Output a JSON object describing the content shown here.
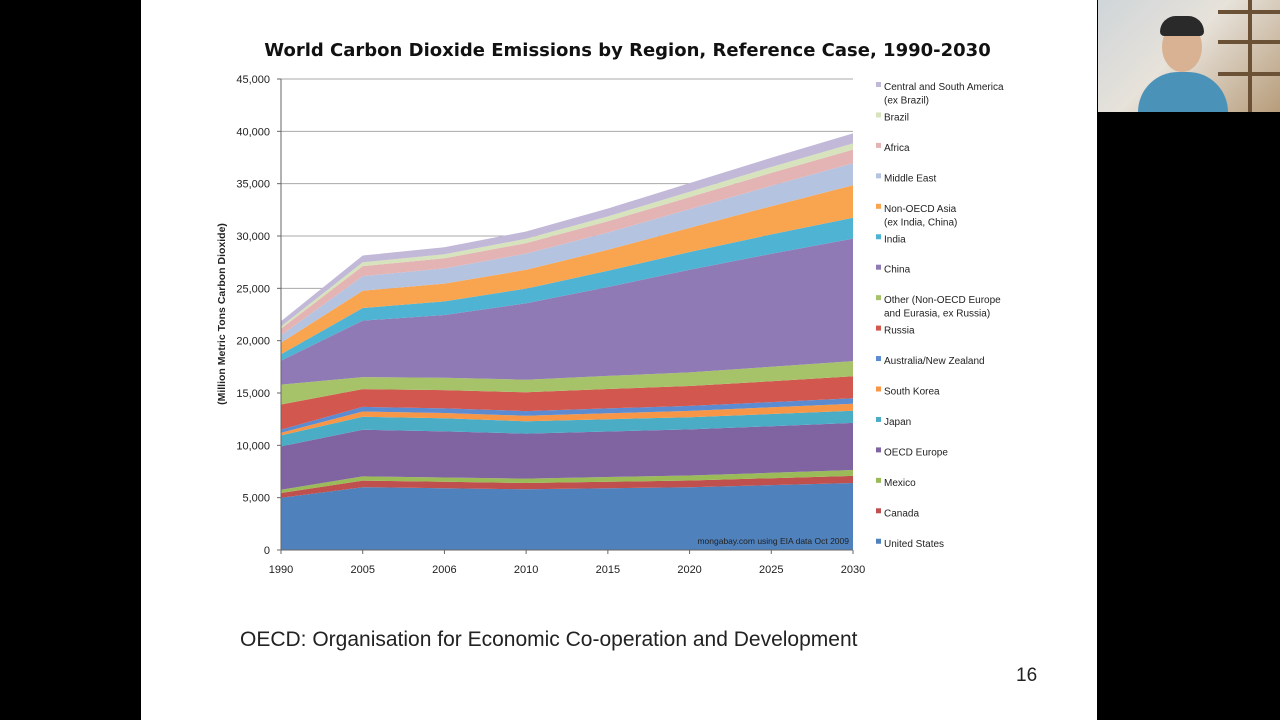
{
  "chart_data": {
    "type": "area",
    "stacked": true,
    "title": "World Carbon Dioxide Emissions by Region, Reference Case, 1990-2030",
    "xlabel": "",
    "ylabel": "(Million Metric Tons Carbon Dioxide)",
    "ylim": [
      0,
      45000
    ],
    "yticks": [
      0,
      5000,
      10000,
      15000,
      20000,
      25000,
      30000,
      35000,
      40000,
      45000
    ],
    "ytick_labels": [
      "0",
      "5,000",
      "10,000",
      "15,000",
      "20,000",
      "25,000",
      "30,000",
      "35,000",
      "40,000",
      "45,000"
    ],
    "categories": [
      "1990",
      "2005",
      "2006",
      "2010",
      "2015",
      "2020",
      "2025",
      "2030"
    ],
    "grid": true,
    "legend_position": "right",
    "annotation": "mongabay.com using EIA data Oct 2009",
    "series": [
      {
        "name": "United States",
        "color": "#4f81bd",
        "values": [
          5000,
          6000,
          5900,
          5800,
          5900,
          6000,
          6200,
          6400
        ]
      },
      {
        "name": "Canada",
        "color": "#c0504d",
        "values": [
          450,
          630,
          620,
          600,
          620,
          640,
          660,
          680
        ]
      },
      {
        "name": "Mexico",
        "color": "#9bbb59",
        "values": [
          300,
          400,
          410,
          420,
          450,
          480,
          520,
          560
        ]
      },
      {
        "name": "OECD Europe",
        "color": "#8064a2",
        "values": [
          4150,
          4450,
          4400,
          4300,
          4350,
          4400,
          4450,
          4500
        ]
      },
      {
        "name": "Japan",
        "color": "#4bacc6",
        "values": [
          1050,
          1250,
          1250,
          1180,
          1180,
          1170,
          1160,
          1160
        ]
      },
      {
        "name": "South Korea",
        "color": "#f79646",
        "values": [
          250,
          500,
          510,
          520,
          560,
          600,
          640,
          680
        ]
      },
      {
        "name": "Australia/New Zealand",
        "color": "#5b8bd0",
        "values": [
          300,
          440,
          440,
          450,
          470,
          480,
          500,
          520
        ]
      },
      {
        "name": "Russia",
        "color": "#d2574e",
        "values": [
          2400,
          1700,
          1750,
          1800,
          1850,
          1900,
          2000,
          2100
        ]
      },
      {
        "name": "Other (Non-OECD Europe and Eurasia, ex Russia)",
        "color": "#a7c36a",
        "values": [
          1900,
          1150,
          1170,
          1200,
          1250,
          1300,
          1370,
          1450
        ]
      },
      {
        "name": "China",
        "color": "#8f7ab5",
        "values": [
          2300,
          5400,
          6000,
          7300,
          8500,
          9800,
          10800,
          11700
        ]
      },
      {
        "name": "India",
        "color": "#4fb3d3",
        "values": [
          600,
          1200,
          1300,
          1400,
          1550,
          1700,
          1850,
          2000
        ]
      },
      {
        "name": "Non-OECD Asia (ex India, China)",
        "color": "#f9a44e",
        "values": [
          1100,
          1650,
          1700,
          1800,
          2000,
          2300,
          2700,
          3100
        ]
      },
      {
        "name": "Middle East",
        "color": "#b4c3e0",
        "values": [
          700,
          1400,
          1450,
          1550,
          1650,
          1800,
          1950,
          2100
        ]
      },
      {
        "name": "Africa",
        "color": "#e4b4b4",
        "values": [
          650,
          950,
          970,
          1000,
          1080,
          1150,
          1230,
          1300
        ]
      },
      {
        "name": "Brazil",
        "color": "#d6e3bc",
        "values": [
          200,
          370,
          380,
          410,
          460,
          510,
          560,
          600
        ]
      },
      {
        "name": "Central and South America (ex Brazil)",
        "color": "#c2b8d8",
        "values": [
          500,
          650,
          670,
          700,
          760,
          820,
          880,
          950
        ]
      }
    ]
  },
  "legend": [
    {
      "lines": [
        "Central and South America",
        "(ex Brazil)"
      ],
      "color": "#c2b8d8"
    },
    {
      "lines": [
        "Brazil"
      ],
      "color": "#d6e3bc"
    },
    {
      "lines": [
        "Africa"
      ],
      "color": "#e4b4b4"
    },
    {
      "lines": [
        "Middle East"
      ],
      "color": "#b4c3e0"
    },
    {
      "lines": [
        "Non-OECD Asia",
        "(ex India, China)"
      ],
      "color": "#f9a44e"
    },
    {
      "lines": [
        "India"
      ],
      "color": "#4fb3d3"
    },
    {
      "lines": [
        "China"
      ],
      "color": "#8f7ab5"
    },
    {
      "lines": [
        "Other (Non-OECD Europe",
        "and Eurasia, ex Russia)"
      ],
      "color": "#a7c36a"
    },
    {
      "lines": [
        "Russia"
      ],
      "color": "#d2574e"
    },
    {
      "lines": [
        "Australia/New Zealand"
      ],
      "color": "#5b8bd0"
    },
    {
      "lines": [
        "South Korea"
      ],
      "color": "#f79646"
    },
    {
      "lines": [
        "Japan"
      ],
      "color": "#4bacc6"
    },
    {
      "lines": [
        "OECD Europe"
      ],
      "color": "#8064a2"
    },
    {
      "lines": [
        "Mexico"
      ],
      "color": "#9bbb59"
    },
    {
      "lines": [
        "Canada"
      ],
      "color": "#c0504d"
    },
    {
      "lines": [
        "United States"
      ],
      "color": "#4f81bd"
    }
  ],
  "slide": {
    "footnote": "OECD: Organisation for Economic Co-operation and Development",
    "page_number": "16"
  }
}
